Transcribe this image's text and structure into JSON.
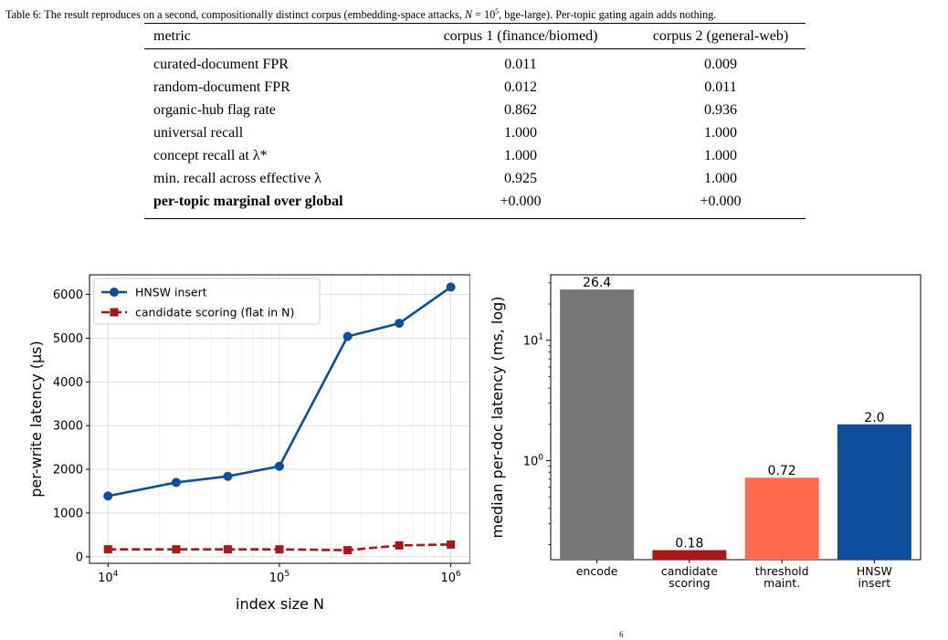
{
  "caption": {
    "label": "Table 6:",
    "text_before_n": " The result reproduces on a second, compositionally distinct corpus (embedding-space attacks, ",
    "n_symbol": "N",
    "n_equals": " = 10",
    "n_exponent": "5",
    "text_after_n": ", bge-large). Per-topic gating again adds nothing."
  },
  "table": {
    "headers": [
      "metric",
      "corpus 1 (finance/biomed)",
      "corpus 2 (general-web)"
    ],
    "rows": [
      {
        "metric": "curated-document FPR",
        "corpus1": "0.011",
        "corpus2": "0.009"
      },
      {
        "metric": "random-document FPR",
        "corpus1": "0.012",
        "corpus2": "0.011"
      },
      {
        "metric": "organic-hub flag rate",
        "corpus1": "0.862",
        "corpus2": "0.936"
      },
      {
        "metric": "universal recall",
        "corpus1": "1.000",
        "corpus2": "1.000"
      },
      {
        "metric": "concept recall at λ*",
        "corpus1": "1.000",
        "corpus2": "1.000"
      },
      {
        "metric": "min. recall across effective λ",
        "corpus1": "0.925",
        "corpus2": "1.000"
      },
      {
        "metric": "per-topic marginal over global",
        "corpus1": "+0.000",
        "corpus2": "+0.000",
        "bold": true
      }
    ]
  },
  "chart_data": [
    {
      "type": "line",
      "x": [
        10000,
        25000,
        50000,
        100000,
        250000,
        500000,
        1000000
      ],
      "xscale": "log",
      "xlim": [
        7800,
        1300000
      ],
      "xticks": [
        {
          "value": 10000,
          "base": "10",
          "exp": "4"
        },
        {
          "value": 100000,
          "base": "10",
          "exp": "5"
        },
        {
          "value": 1000000,
          "base": "10",
          "exp": "6"
        }
      ],
      "ylim": [
        -150,
        6450
      ],
      "yticks": [
        0,
        1000,
        2000,
        3000,
        4000,
        5000,
        6000
      ],
      "xlabel": "index size N",
      "ylabel": "per-write latency (μs)",
      "grid": true,
      "legend_position": "top-left",
      "series": [
        {
          "name": "HNSW insert",
          "color": "#0d4f9c",
          "marker": "circle",
          "style": "solid",
          "values": [
            1390,
            1700,
            1840,
            2070,
            5040,
            5340,
            6170
          ]
        },
        {
          "name": "candidate scoring (flat in N)",
          "color": "#ab1719",
          "marker": "square",
          "style": "dashed",
          "values": [
            170,
            170,
            170,
            170,
            150,
            260,
            280
          ]
        }
      ]
    },
    {
      "type": "bar",
      "categories": [
        "encode",
        "candidate scoring",
        "threshold maint.",
        "HNSW insert"
      ],
      "category_lines": [
        [
          "encode"
        ],
        [
          "candidate",
          "scoring"
        ],
        [
          "threshold",
          "maint."
        ],
        [
          "HNSW",
          "insert"
        ]
      ],
      "values": [
        26.4,
        0.18,
        0.72,
        2.0
      ],
      "data_labels": [
        "26.4",
        "0.18",
        "0.72",
        "2.0"
      ],
      "colors": [
        "#767676",
        "#ab1719",
        "#ff6a4d",
        "#0d4f9c"
      ],
      "yscale": "log",
      "ylim": [
        0.15,
        35
      ],
      "yticks": [
        {
          "value": 1,
          "base": "10",
          "exp": "0"
        },
        {
          "value": 10,
          "base": "10",
          "exp": "1"
        }
      ],
      "ylabel": "median per-doc latency (ms, log)",
      "grid": false
    }
  ],
  "page_number": "6"
}
